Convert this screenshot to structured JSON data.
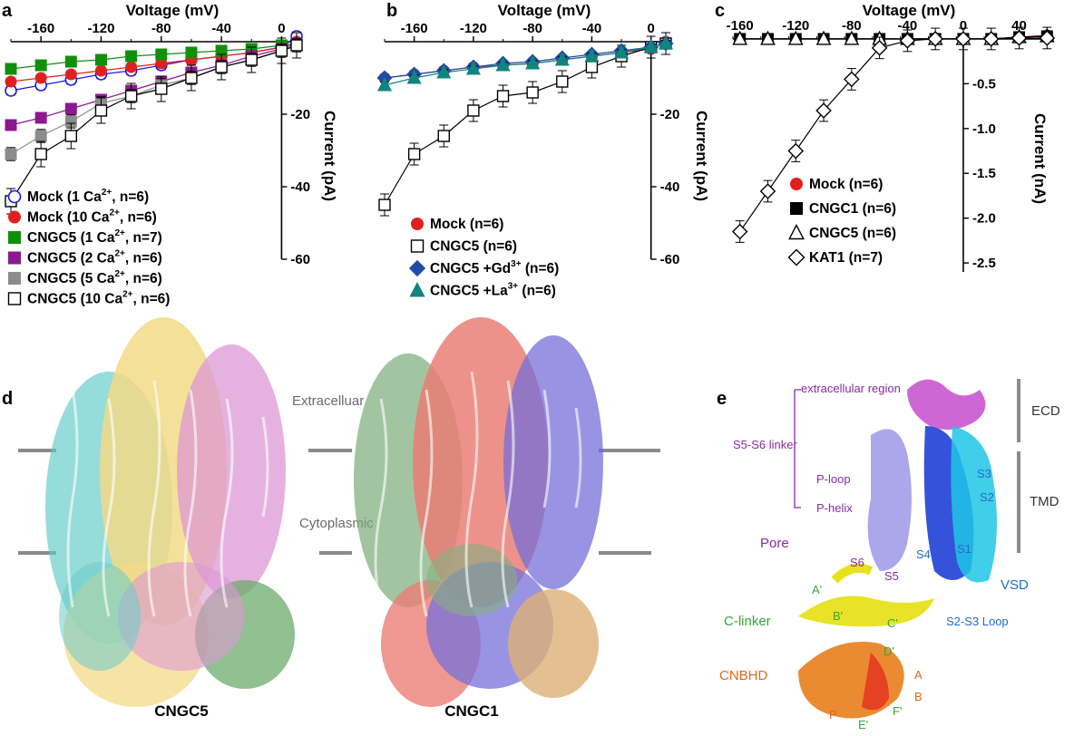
{
  "panels": {
    "a": {
      "label": "a",
      "xlabel": "Voltage (mV)",
      "ylabel": "Current (pA)"
    },
    "b": {
      "label": "b",
      "xlabel": "Voltage (mV)",
      "ylabel": "Current (pA)"
    },
    "c": {
      "label": "c",
      "xlabel": "Voltage (mV)",
      "ylabel": "Current (nA)"
    },
    "d": {
      "label": "d",
      "extracellular": "Extracelluar",
      "cytoplasmic": "Cytoplasmic",
      "left_name": "CNGC5",
      "right_name": "CNGC1"
    },
    "e": {
      "label": "e",
      "bracket_labels": [
        "extracellular region",
        "S5-S6 linker",
        "P-loop",
        "P-helix"
      ],
      "region_labels": [
        "ECD",
        "TMD"
      ],
      "pore": "Pore",
      "vsd": "VSD",
      "c_linker": "C-linker",
      "cnbhd": "CNBHD",
      "helices": [
        "S1",
        "S2",
        "S3",
        "S4",
        "S5",
        "S6"
      ],
      "s2s3": "S2-S3 Loop",
      "cl_helices": [
        "A'",
        "B'",
        "C'",
        "D'",
        "E'",
        "F'"
      ],
      "cn_helices": [
        "A",
        "B",
        "P"
      ]
    }
  },
  "colors": {
    "cyan": "#5cc9c6",
    "yellow": "#f2d77e",
    "pink": "#d98fd0",
    "green": "#5fa35f",
    "salmon": "#e8736a",
    "blue": "#6b63d6",
    "tan": "#d9a86a",
    "sage": "#7aaa76"
  },
  "chart_data": [
    {
      "type": "scatter",
      "xlabel": "Voltage (mV)",
      "ylabel": "Current (pA)",
      "xlim": [
        -180,
        10
      ],
      "ylim": [
        -60,
        2
      ],
      "xticks": [
        -160,
        -120,
        -80,
        -40,
        0
      ],
      "yticks": [
        -20,
        -40,
        -60
      ],
      "x": [
        -180,
        -160,
        -140,
        -120,
        -100,
        -80,
        -60,
        -40,
        -20,
        0,
        10
      ],
      "series": [
        {
          "name": "Mock (1 Ca2+, n=6)",
          "label": "Mock (1 Ca",
          "sup": "2+",
          "tail": ", n=6)",
          "marker": "circle-open",
          "color": "#1a1ae6",
          "values": [
            -13.5,
            -12,
            -10.5,
            -9,
            -8,
            -6.5,
            -5,
            -4,
            -3,
            -1.5,
            1.5
          ],
          "err": 1.2
        },
        {
          "name": "Mock (10 Ca2+, n=6)",
          "label": "Mock (10 Ca",
          "sup": "2+",
          "tail": ", n=6)",
          "marker": "circle",
          "color": "#e02020",
          "values": [
            -11,
            -10,
            -9,
            -8,
            -7,
            -6,
            -5,
            -4,
            -3,
            -1.5,
            0
          ],
          "err": 1.0
        },
        {
          "name": "CNGC5 (1 Ca2+, n=7)",
          "label": "CNGC5 (1 Ca",
          "sup": "2+",
          "tail": ", n=7)",
          "marker": "square",
          "color": "#10900a",
          "values": [
            -7.5,
            -6.5,
            -5.5,
            -5,
            -4,
            -3.5,
            -3,
            -2.5,
            -2,
            -1,
            -0.5
          ],
          "err": 1.0
        },
        {
          "name": "CNGC5 (2 Ca2+, n=6)",
          "label": "CNGC5 (2 Ca",
          "sup": "2+",
          "tail": ", n=6)",
          "marker": "square",
          "color": "#8a1a8e",
          "values": [
            -23,
            -21,
            -18.5,
            -16,
            -13.5,
            -11,
            -8.5,
            -6.5,
            -4,
            -2,
            -0.5
          ],
          "err": 1.2
        },
        {
          "name": "CNGC5 (5 Ca2+, n=6)",
          "label": "CNGC5 (5 Ca",
          "sup": "2+",
          "tail": ", n=6)",
          "marker": "square",
          "color": "#8c8c8c",
          "values": [
            -31,
            -26,
            -22,
            -17,
            -15,
            -12,
            -10,
            -7,
            -5,
            -2.5,
            -1
          ],
          "err": 1.8
        },
        {
          "name": "CNGC5 (10 Ca2+, n=6)",
          "label": "CNGC5 (10 Ca",
          "sup": "2+",
          "tail": ", n=6)",
          "marker": "square-open",
          "color": "#000000",
          "values": [
            -44,
            -31,
            -26,
            -19,
            -15,
            -13,
            -10,
            -7,
            -5,
            -2.5,
            -1
          ],
          "err": 3.5
        }
      ]
    },
    {
      "type": "scatter",
      "xlabel": "Voltage (mV)",
      "ylabel": "Current (pA)",
      "xlim": [
        -180,
        10
      ],
      "ylim": [
        -60,
        2
      ],
      "xticks": [
        -160,
        -120,
        -80,
        -40,
        0
      ],
      "yticks": [
        -20,
        -40,
        -60
      ],
      "x": [
        -180,
        -160,
        -140,
        -120,
        -100,
        -80,
        -60,
        -40,
        -20,
        0,
        10
      ],
      "series": [
        {
          "name": "Mock (n=6)",
          "label": "Mock (n=6)",
          "sup": "",
          "tail": "",
          "marker": "circle",
          "color": "#e02020",
          "values": [
            -10,
            -9,
            -8,
            -7,
            -6.5,
            -6,
            -5,
            -4,
            -3,
            -2,
            0
          ],
          "err": 0.8
        },
        {
          "name": "CNGC5 (n=6)",
          "label": "CNGC5 (n=6)",
          "sup": "",
          "tail": "",
          "marker": "square-open",
          "color": "#000000",
          "values": [
            -45,
            -31,
            -26,
            -19,
            -15,
            -14,
            -11,
            -7,
            -4,
            -1.5,
            -0.5
          ],
          "err": 3.0
        },
        {
          "name": "CNGC5 +Gd3+ (n=6)",
          "label": "CNGC5 +Gd",
          "sup": "3+",
          "tail": " (n=6)",
          "marker": "diamond",
          "color": "#1f4aa8",
          "values": [
            -10,
            -9,
            -8,
            -7,
            -6,
            -5.5,
            -4.5,
            -3.5,
            -2.5,
            -1.5,
            -0.5
          ],
          "err": 0.8
        },
        {
          "name": "CNGC5 +La3+ (n=6)",
          "label": "CNGC5 +La",
          "sup": "3+",
          "tail": " (n=6)",
          "marker": "triangle",
          "color": "#10857e",
          "values": [
            -12,
            -10,
            -8.5,
            -7.5,
            -6.5,
            -6,
            -5,
            -4,
            -3,
            -1.5,
            -0.5
          ],
          "err": 0.8
        }
      ]
    },
    {
      "type": "scatter",
      "xlabel": "Voltage (mV)",
      "ylabel": "Current (nA)",
      "xlim": [
        -165,
        65
      ],
      "ylim": [
        -2.6,
        0.05
      ],
      "xticks": [
        -160,
        -120,
        -80,
        -40,
        0,
        40
      ],
      "yticks": [
        -0.5,
        -1.0,
        -1.5,
        -2.0,
        -2.5
      ],
      "x": [
        -160,
        -140,
        -120,
        -100,
        -80,
        -60,
        -40,
        -20,
        0,
        20,
        40,
        60
      ],
      "series": [
        {
          "name": "Mock (n=6)",
          "label": "Mock (n=6)",
          "sup": "",
          "tail": "",
          "marker": "circle",
          "color": "#e02020",
          "values": [
            0,
            0,
            0,
            0,
            0,
            0,
            0,
            0,
            0,
            0,
            0.02,
            0.04
          ],
          "err": 0.02
        },
        {
          "name": "CNGC1 (n=6)",
          "label": "CNGC1 (n=6)",
          "sup": "",
          "tail": "",
          "marker": "square",
          "color": "#000000",
          "values": [
            0,
            0,
            0,
            0,
            0,
            0,
            0,
            0,
            0,
            0,
            0.02,
            0.03
          ],
          "err": 0.02
        },
        {
          "name": "CNGC5 (n=6)",
          "label": "CNGC5 (n=6)",
          "sup": "",
          "tail": "",
          "marker": "triangle-open",
          "color": "#000000",
          "values": [
            0,
            0,
            0,
            0,
            0,
            0,
            0,
            0,
            0,
            0,
            0.02,
            0.03
          ],
          "err": 0.02
        },
        {
          "name": "KAT1 (n=7)",
          "label": "KAT1 (n=7)",
          "sup": "",
          "tail": "",
          "marker": "diamond-open",
          "color": "#000000",
          "values": [
            -2.15,
            -1.7,
            -1.25,
            -0.8,
            -0.45,
            -0.1,
            -0.02,
            0,
            0,
            0,
            0.01,
            0.01
          ],
          "err": 0.12
        }
      ]
    }
  ]
}
